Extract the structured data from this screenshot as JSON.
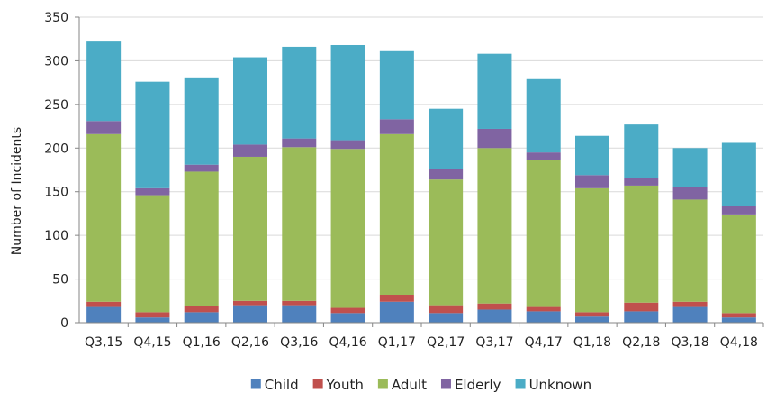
{
  "chart_data": {
    "type": "bar",
    "stacked": true,
    "title": "",
    "xlabel": "",
    "ylabel": "Number of Incidents",
    "ylim": [
      0,
      350
    ],
    "yticks": [
      0,
      50,
      100,
      150,
      200,
      250,
      300,
      350
    ],
    "grid": true,
    "legend_position": "bottom",
    "categories": [
      "Q3,15",
      "Q4,15",
      "Q1,16",
      "Q2,16",
      "Q3,16",
      "Q4,16",
      "Q1,17",
      "Q2,17",
      "Q3,17",
      "Q4,17",
      "Q1,18",
      "Q2,18",
      "Q3,18",
      "Q4,18"
    ],
    "series": [
      {
        "name": "Child",
        "color": "#4f81bd",
        "values": [
          18,
          6,
          12,
          20,
          20,
          11,
          24,
          11,
          15,
          13,
          7,
          13,
          18,
          6
        ]
      },
      {
        "name": "Youth",
        "color": "#c0504d",
        "values": [
          6,
          6,
          7,
          5,
          5,
          6,
          8,
          9,
          7,
          5,
          5,
          10,
          6,
          5
        ]
      },
      {
        "name": "Adult",
        "color": "#9bbb59",
        "values": [
          192,
          134,
          154,
          165,
          176,
          182,
          184,
          144,
          178,
          168,
          142,
          134,
          117,
          113
        ]
      },
      {
        "name": "Elderly",
        "color": "#8064a2",
        "values": [
          15,
          8,
          8,
          14,
          10,
          10,
          17,
          12,
          22,
          9,
          15,
          9,
          14,
          10
        ]
      },
      {
        "name": "Unknown",
        "color": "#4bacc6",
        "values": [
          91,
          122,
          100,
          100,
          105,
          109,
          78,
          69,
          86,
          84,
          45,
          61,
          45,
          72
        ]
      }
    ]
  }
}
